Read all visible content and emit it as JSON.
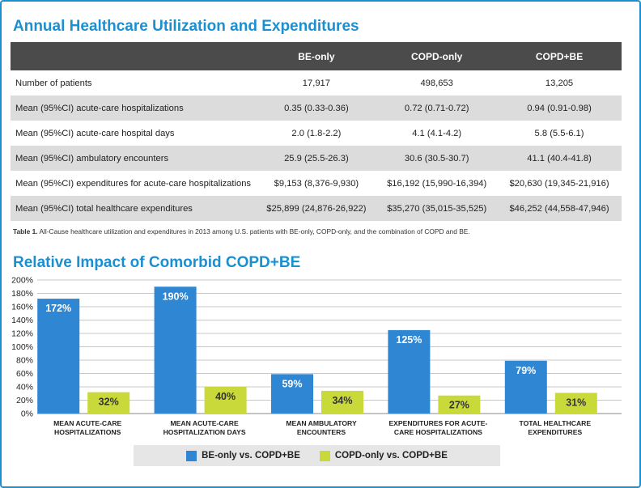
{
  "table_section": {
    "title": "Annual Healthcare Utilization and Expenditures",
    "columns": [
      "",
      "BE-only",
      "COPD-only",
      "COPD+BE"
    ],
    "rows": [
      {
        "label": "Number of patients",
        "values": [
          "17,917",
          "498,653",
          "13,205"
        ]
      },
      {
        "label": "Mean (95%CI) acute-care hospitalizations",
        "values": [
          "0.35 (0.33-0.36)",
          "0.72 (0.71-0.72)",
          "0.94 (0.91-0.98)"
        ]
      },
      {
        "label": "Mean (95%CI) acute-care hospital days",
        "values": [
          "2.0 (1.8-2.2)",
          "4.1 (4.1-4.2)",
          "5.8 (5.5-6.1)"
        ]
      },
      {
        "label": "Mean (95%CI) ambulatory encounters",
        "values": [
          "25.9 (25.5-26.3)",
          "30.6 (30.5-30.7)",
          "41.1 (40.4-41.8)"
        ]
      },
      {
        "label": "Mean (95%CI) expenditures for acute-care hospitalizations",
        "values": [
          "$9,153 (8,376-9,930)",
          "$16,192 (15,990-16,394)",
          "$20,630 (19,345-21,916)"
        ]
      },
      {
        "label": "Mean (95%CI) total healthcare expenditures",
        "values": [
          "$25,899 (24,876-26,922)",
          "$35,270 (35,015-35,525)",
          "$46,252 (44,558-47,946)"
        ]
      }
    ],
    "caption_label": "Table 1.",
    "caption_text": " All-Cause healthcare utilization and expenditures in 2013 among U.S. patients with BE-only, COPD-only, and the combination of COPD and BE."
  },
  "chart_data": {
    "type": "bar",
    "title": "Relative Impact of Comorbid COPD+BE",
    "categories": [
      [
        "MEAN ACUTE-CARE",
        "HOSPITALIZATIONS"
      ],
      [
        "MEAN ACUTE-CARE",
        "HOSPITALIZATION DAYS"
      ],
      [
        "MEAN AMBULATORY",
        "ENCOUNTERS"
      ],
      [
        "EXPENDITURES FOR ACUTE-",
        "CARE HOSPITALIZATIONS"
      ],
      [
        "TOTAL HEALTHCARE",
        "EXPENDITURES"
      ]
    ],
    "series": [
      {
        "name": "BE-only vs. COPD+BE",
        "color": "#2f87d3",
        "label_color": "#ffffff",
        "values": [
          172,
          190,
          59,
          125,
          79
        ]
      },
      {
        "name": "COPD-only vs. COPD+BE",
        "color": "#c9d93a",
        "label_color": "#333333",
        "values": [
          32,
          40,
          34,
          27,
          31
        ]
      }
    ],
    "ylim": [
      0,
      200
    ],
    "ytick_step": 20,
    "y_tick_format": "percent",
    "grid": true,
    "legend_position": "bottom"
  }
}
